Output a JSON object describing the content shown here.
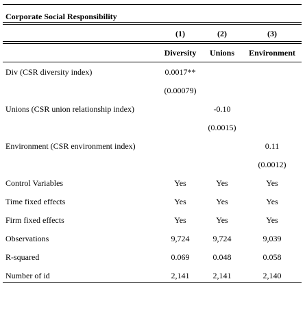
{
  "table": {
    "caption": "Corporate Social Responsibility",
    "column_numbers": [
      "(1)",
      "(2)",
      "(3)"
    ],
    "column_names": [
      "Diversity",
      "Unions",
      "Environment"
    ],
    "rows": [
      {
        "label": "Div (CSR diversity index)",
        "values": [
          "0.0017**",
          "",
          ""
        ]
      },
      {
        "label": "",
        "values": [
          "(0.00079)",
          "",
          ""
        ]
      },
      {
        "label": "Unions (CSR union relationship index)",
        "values": [
          "",
          "-0.10",
          ""
        ]
      },
      {
        "label": "",
        "values": [
          "",
          "(0.0015)",
          ""
        ]
      },
      {
        "label": "Environment (CSR environment index)",
        "values": [
          "",
          "",
          "0.11"
        ]
      },
      {
        "label": "",
        "values": [
          "",
          "",
          "(0.0012)"
        ]
      },
      {
        "label": "Control Variables",
        "values": [
          "Yes",
          "Yes",
          "Yes"
        ]
      },
      {
        "label": "Time fixed effects",
        "values": [
          "Yes",
          "Yes",
          "Yes"
        ]
      },
      {
        "label": "Firm fixed effects",
        "values": [
          "Yes",
          "Yes",
          "Yes"
        ]
      },
      {
        "label": "Observations",
        "values": [
          "9,724",
          "9,724",
          "9,039"
        ]
      },
      {
        "label": "R-squared",
        "values": [
          "0.069",
          "0.048",
          "0.058"
        ]
      },
      {
        "label": "Number of id",
        "values": [
          "2,141",
          "2,141",
          "2,140"
        ]
      }
    ]
  }
}
